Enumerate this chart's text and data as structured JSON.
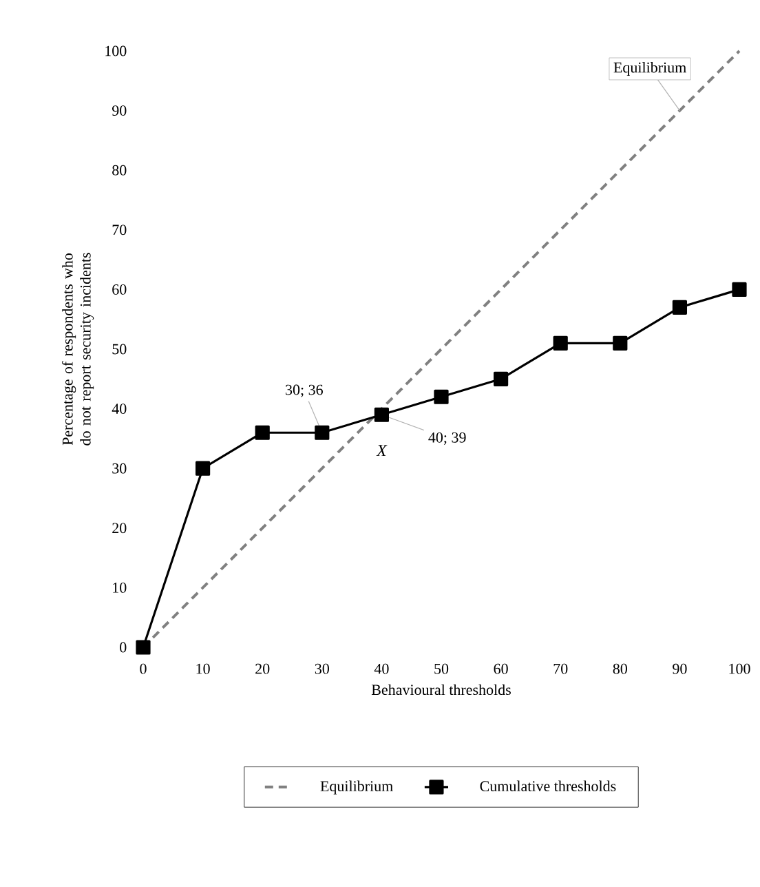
{
  "chart_data": {
    "type": "line",
    "xlabel": "Behavioural thresholds",
    "ylabel": "Percentage of respondents who do not report security incidents",
    "x": [
      0,
      10,
      20,
      30,
      40,
      50,
      60,
      70,
      80,
      90,
      100
    ],
    "series": [
      {
        "name": "Equilibrium",
        "color": "#808080",
        "line_style": "dashed",
        "marker": "none",
        "x": [
          0,
          100
        ],
        "values": [
          0,
          100
        ]
      },
      {
        "name": "Cumulative thresholds",
        "color": "#000000",
        "line_style": "solid",
        "marker": "square",
        "values": [
          0,
          30,
          36,
          36,
          39,
          42,
          45,
          51,
          51,
          57,
          60
        ]
      }
    ],
    "xlim": [
      0,
      100
    ],
    "ylim": [
      0,
      100
    ],
    "xticks": [
      0,
      10,
      20,
      30,
      40,
      50,
      60,
      70,
      80,
      90,
      100
    ],
    "yticks": [
      0,
      10,
      20,
      30,
      40,
      50,
      60,
      70,
      80,
      90,
      100
    ],
    "grid": false,
    "legend": "bottom",
    "annotations": [
      {
        "text": "Equilibrium",
        "x": 90,
        "y": 90
      },
      {
        "text": "30; 36",
        "x": 30,
        "y": 36
      },
      {
        "text": "40; 39",
        "x": 40,
        "y": 39
      },
      {
        "text": "X",
        "x": 40,
        "y": 39
      }
    ]
  }
}
